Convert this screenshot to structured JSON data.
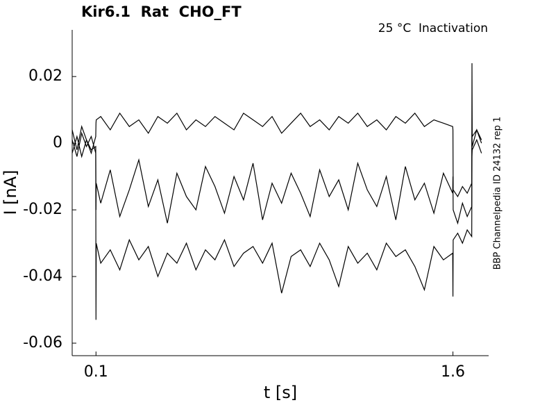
{
  "chart_data": {
    "type": "line",
    "title": "Kir6.1  Rat  CHO_FT",
    "subtitle": "25 °C  Inactivation",
    "side_note": "BBP Channelpedia ID 24132 rep 1",
    "xlabel": "t [s]",
    "ylabel": "I [nA]",
    "x": [
      0,
      0.02,
      0.04,
      0.06,
      0.08,
      0.099,
      0.1,
      0.101,
      0.12,
      0.16,
      0.2,
      0.24,
      0.28,
      0.32,
      0.36,
      0.4,
      0.44,
      0.48,
      0.52,
      0.56,
      0.6,
      0.64,
      0.68,
      0.72,
      0.76,
      0.8,
      0.84,
      0.88,
      0.92,
      0.96,
      1.0,
      1.04,
      1.08,
      1.12,
      1.16,
      1.2,
      1.24,
      1.28,
      1.32,
      1.36,
      1.4,
      1.44,
      1.48,
      1.52,
      1.56,
      1.599,
      1.6,
      1.601,
      1.62,
      1.64,
      1.66,
      1.679,
      1.68,
      1.681,
      1.7,
      1.72
    ],
    "series": [
      {
        "color": "#000000",
        "values": [
          0.004,
          -0.002,
          0.005,
          0.001,
          -0.003,
          0.002,
          0.006,
          0.007,
          0.008,
          0.004,
          0.009,
          0.005,
          0.007,
          0.003,
          0.008,
          0.006,
          0.009,
          0.004,
          0.007,
          0.005,
          0.008,
          0.006,
          0.004,
          0.009,
          0.007,
          0.005,
          0.008,
          0.003,
          0.006,
          0.009,
          0.005,
          0.007,
          0.004,
          0.008,
          0.006,
          0.009,
          0.005,
          0.007,
          0.004,
          0.008,
          0.006,
          0.009,
          0.005,
          0.007,
          0.006,
          0.005,
          0.004,
          -0.014,
          -0.016,
          -0.013,
          -0.015,
          -0.012,
          0.024,
          0.002,
          0.004,
          0.001
        ]
      },
      {
        "color": "#000000",
        "values": [
          -0.003,
          0.002,
          -0.004,
          0.001,
          -0.002,
          -0.001,
          -0.053,
          -0.03,
          -0.036,
          -0.032,
          -0.038,
          -0.029,
          -0.035,
          -0.031,
          -0.04,
          -0.033,
          -0.036,
          -0.03,
          -0.038,
          -0.032,
          -0.035,
          -0.029,
          -0.037,
          -0.033,
          -0.031,
          -0.036,
          -0.03,
          -0.045,
          -0.034,
          -0.032,
          -0.037,
          -0.03,
          -0.035,
          -0.043,
          -0.031,
          -0.036,
          -0.033,
          -0.038,
          -0.03,
          -0.034,
          -0.032,
          -0.037,
          -0.044,
          -0.031,
          -0.035,
          -0.033,
          -0.046,
          -0.029,
          -0.027,
          -0.03,
          -0.026,
          -0.028,
          -0.004,
          -0.002,
          0.001,
          -0.003
        ]
      },
      {
        "color": "#000000",
        "values": [
          0.001,
          -0.004,
          0.003,
          -0.001,
          0.002,
          -0.003,
          -0.02,
          -0.012,
          -0.018,
          -0.008,
          -0.022,
          -0.014,
          -0.005,
          -0.019,
          -0.011,
          -0.024,
          -0.009,
          -0.016,
          -0.02,
          -0.007,
          -0.013,
          -0.021,
          -0.01,
          -0.017,
          -0.006,
          -0.023,
          -0.012,
          -0.018,
          -0.009,
          -0.015,
          -0.022,
          -0.008,
          -0.016,
          -0.011,
          -0.02,
          -0.006,
          -0.014,
          -0.019,
          -0.01,
          -0.023,
          -0.007,
          -0.017,
          -0.012,
          -0.021,
          -0.009,
          -0.015,
          -0.01,
          -0.02,
          -0.024,
          -0.018,
          -0.022,
          -0.019,
          0.003,
          -0.001,
          0.004,
          0
        ]
      }
    ],
    "xlim": [
      0,
      1.75
    ],
    "xticks": [
      0.1,
      1.6
    ],
    "ylim": [
      -0.06375,
      0.034
    ],
    "yticks": [
      0.02,
      0,
      -0.02,
      -0.04,
      -0.06
    ],
    "grid": false
  }
}
